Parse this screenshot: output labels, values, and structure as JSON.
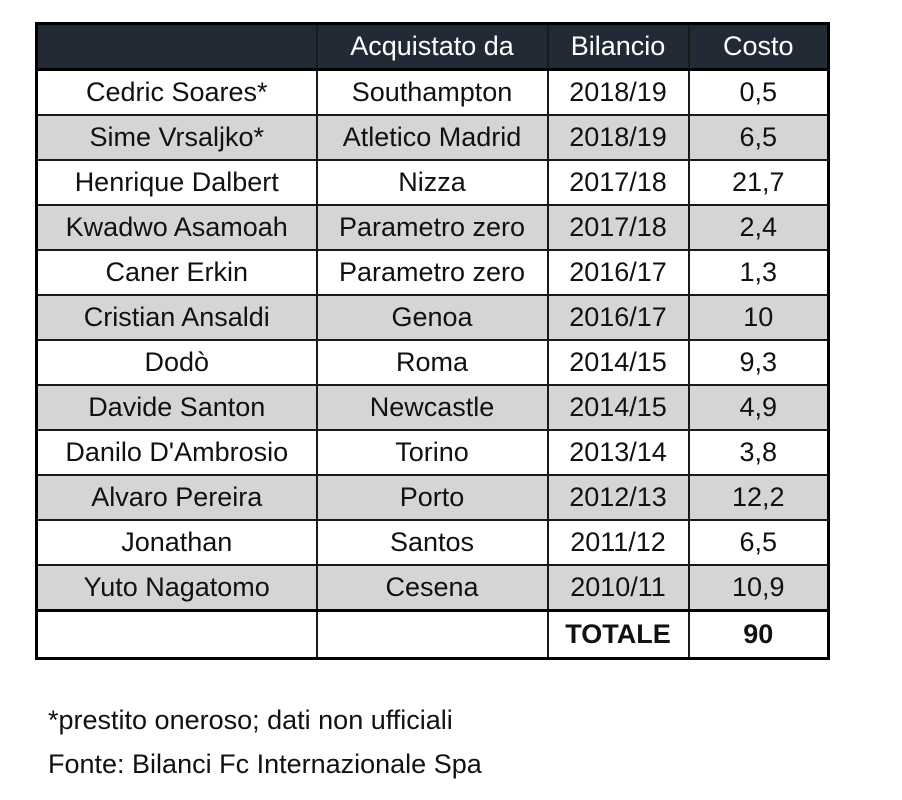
{
  "colors": {
    "header_bg": "#222b35",
    "header_text": "#ffffff",
    "row_alt_bg": "#d5d5d5",
    "total_row_bg": "#fce08c",
    "border": "#000000"
  },
  "table": {
    "headers": [
      "",
      "Acquistato da",
      "Bilancio",
      "Costo"
    ],
    "rows": [
      [
        "Cedric Soares*",
        "Southampton",
        "2018/19",
        "0,5"
      ],
      [
        "Sime Vrsaljko*",
        "Atletico Madrid",
        "2018/19",
        "6,5"
      ],
      [
        "Henrique Dalbert",
        "Nizza",
        "2017/18",
        "21,7"
      ],
      [
        "Kwadwo Asamoah",
        "Parametro zero",
        "2017/18",
        "2,4"
      ],
      [
        "Caner Erkin",
        "Parametro zero",
        "2016/17",
        "1,3"
      ],
      [
        "Cristian Ansaldi",
        "Genoa",
        "2016/17",
        "10"
      ],
      [
        "Dodò",
        "Roma",
        "2014/15",
        "9,3"
      ],
      [
        "Davide Santon",
        "Newcastle",
        "2014/15",
        "4,9"
      ],
      [
        "Danilo D'Ambrosio",
        "Torino",
        "2013/14",
        "3,8"
      ],
      [
        "Alvaro Pereira",
        "Porto",
        "2012/13",
        "12,2"
      ],
      [
        "Jonathan",
        "Santos",
        "2011/12",
        "6,5"
      ],
      [
        "Yuto Nagatomo",
        "Cesena",
        "2010/11",
        "10,9"
      ]
    ],
    "total": [
      "",
      "",
      "TOTALE",
      "90"
    ]
  },
  "footnotes": {
    "line1": "*prestito oneroso; dati non ufficiali",
    "line2": "Fonte: Bilanci Fc Internazionale Spa"
  },
  "chart_data": {
    "type": "table",
    "columns": [
      "",
      "Acquistato da",
      "Bilancio",
      "Costo"
    ],
    "rows": [
      {
        "player": "Cedric Soares*",
        "acquired_from": "Southampton",
        "season": "2018/19",
        "cost": 0.5
      },
      {
        "player": "Sime Vrsaljko*",
        "acquired_from": "Atletico Madrid",
        "season": "2018/19",
        "cost": 6.5
      },
      {
        "player": "Henrique Dalbert",
        "acquired_from": "Nizza",
        "season": "2017/18",
        "cost": 21.7
      },
      {
        "player": "Kwadwo Asamoah",
        "acquired_from": "Parametro zero",
        "season": "2017/18",
        "cost": 2.4
      },
      {
        "player": "Caner Erkin",
        "acquired_from": "Parametro zero",
        "season": "2016/17",
        "cost": 1.3
      },
      {
        "player": "Cristian Ansaldi",
        "acquired_from": "Genoa",
        "season": "2016/17",
        "cost": 10
      },
      {
        "player": "Dodò",
        "acquired_from": "Roma",
        "season": "2014/15",
        "cost": 9.3
      },
      {
        "player": "Davide Santon",
        "acquired_from": "Newcastle",
        "season": "2014/15",
        "cost": 4.9
      },
      {
        "player": "Danilo D'Ambrosio",
        "acquired_from": "Torino",
        "season": "2013/14",
        "cost": 3.8
      },
      {
        "player": "Alvaro Pereira",
        "acquired_from": "Porto",
        "season": "2012/13",
        "cost": 12.2
      },
      {
        "player": "Jonathan",
        "acquired_from": "Santos",
        "season": "2011/12",
        "cost": 6.5
      },
      {
        "player": "Yuto Nagatomo",
        "acquired_from": "Cesena",
        "season": "2010/11",
        "cost": 10.9
      }
    ],
    "total_label": "TOTALE",
    "total_cost": 90
  }
}
